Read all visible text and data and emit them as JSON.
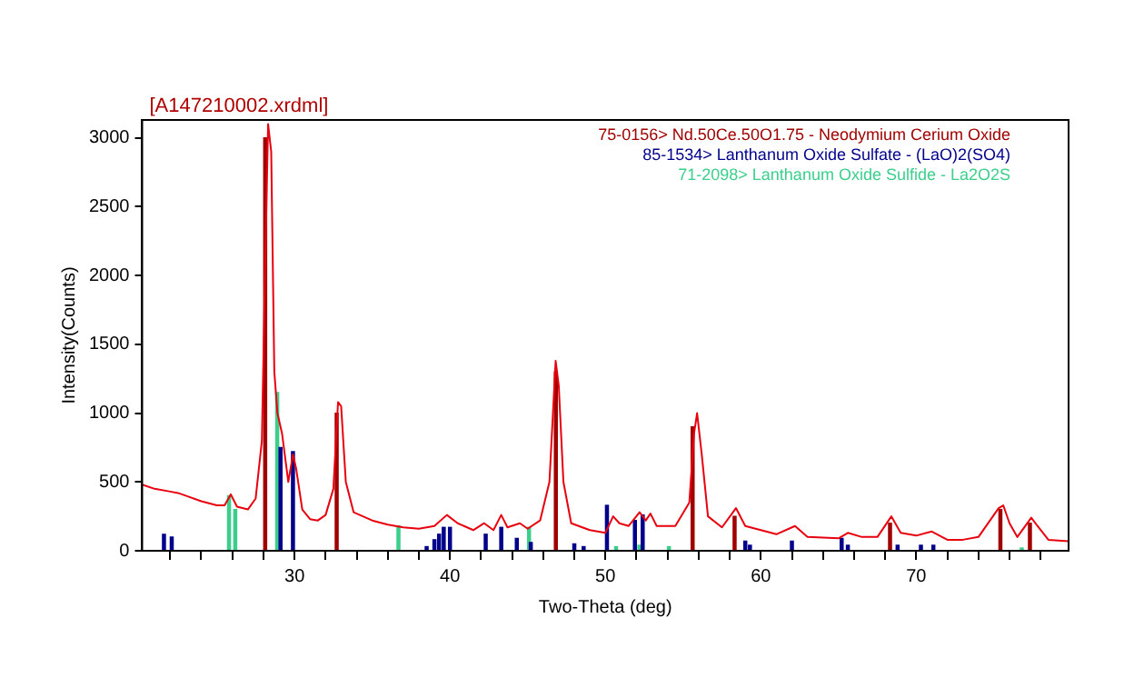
{
  "chart_data": {
    "type": "line",
    "title": "[A147210002.xrdml]",
    "xlabel": "Two-Theta (deg)",
    "ylabel": "Intensity(Counts)",
    "xlim": [
      20.2,
      79.8
    ],
    "ylim": [
      0,
      3130
    ],
    "xticks": [
      {
        "value": 22,
        "label": null
      },
      {
        "value": 24,
        "label": null
      },
      {
        "value": 26,
        "label": null
      },
      {
        "value": 28,
        "label": null
      },
      30,
      {
        "value": 32,
        "label": null
      },
      {
        "value": 34,
        "label": null
      },
      {
        "value": 36,
        "label": null
      },
      {
        "value": 38,
        "label": null
      },
      40,
      {
        "value": 42,
        "label": null
      },
      {
        "value": 44,
        "label": null
      },
      {
        "value": 46,
        "label": null
      },
      {
        "value": 48,
        "label": null
      },
      50,
      {
        "value": 52,
        "label": null
      },
      {
        "value": 54,
        "label": null
      },
      {
        "value": 56,
        "label": null
      },
      {
        "value": 58,
        "label": null
      },
      60,
      {
        "value": 62,
        "label": null
      },
      {
        "value": 64,
        "label": null
      },
      {
        "value": 66,
        "label": null
      },
      {
        "value": 68,
        "label": null
      },
      70,
      {
        "value": 72,
        "label": null
      },
      {
        "value": 74,
        "label": null
      },
      {
        "value": 76,
        "label": null
      },
      {
        "value": 78,
        "label": null
      }
    ],
    "yticks": [
      0,
      500,
      1000,
      1500,
      2000,
      2500,
      3000
    ],
    "grid": false,
    "legend": "top right",
    "marker": "none",
    "series": [
      {
        "color": "#e8000e",
        "x": [
          20.2,
          21,
          22,
          22.5,
          23,
          24,
          25,
          25.5,
          25.9,
          26.3,
          27,
          27.5,
          27.9,
          28.1,
          28.3,
          28.5,
          28.7,
          28.9,
          29.2,
          29.6,
          29.9,
          30.1,
          30.5,
          31,
          31.5,
          32,
          32.5,
          32.8,
          33.0,
          33.3,
          33.8,
          35,
          36,
          37,
          38,
          39,
          39.8,
          40.5,
          41.5,
          42.2,
          42.8,
          43.3,
          43.7,
          44.5,
          45,
          45.8,
          46.4,
          46.8,
          47.0,
          47.3,
          47.8,
          49,
          50,
          50.5,
          50.9,
          51.5,
          52.2,
          52.6,
          52.9,
          53.3,
          54.5,
          55.4,
          55.7,
          55.9,
          56.2,
          56.6,
          57.5,
          58.4,
          59,
          60,
          61,
          62.2,
          63,
          65,
          65.6,
          66.5,
          67.5,
          68.4,
          69,
          70,
          71,
          72,
          73,
          74,
          75.3,
          75.6,
          76,
          76.5,
          77.4,
          77.8,
          78.5,
          79.8
        ],
        "values": [
          480,
          450,
          430,
          420,
          400,
          360,
          330,
          330,
          410,
          320,
          300,
          380,
          800,
          2000,
          3100,
          2900,
          1300,
          1000,
          850,
          500,
          700,
          600,
          300,
          230,
          220,
          260,
          450,
          1080,
          1050,
          500,
          280,
          220,
          190,
          170,
          160,
          180,
          260,
          200,
          150,
          200,
          150,
          260,
          170,
          200,
          160,
          220,
          500,
          1380,
          1200,
          500,
          200,
          150,
          130,
          250,
          200,
          180,
          280,
          220,
          270,
          180,
          180,
          350,
          850,
          1000,
          700,
          250,
          170,
          310,
          180,
          150,
          120,
          180,
          100,
          90,
          130,
          100,
          100,
          250,
          130,
          110,
          140,
          80,
          80,
          100,
          310,
          330,
          200,
          100,
          240,
          180,
          80,
          70
        ]
      },
      {
        "type": "bar",
        "name": "75-0156> Nd.50Ce.50O1.75 - Neodymium Cerium Oxide",
        "color": "#a00000",
        "x": [
          28.3,
          32.9,
          47.0,
          55.8,
          58.5,
          68.5,
          75.6,
          77.5
        ],
        "values": [
          3000,
          1000,
          1300,
          900,
          250,
          200,
          300,
          200
        ]
      },
      {
        "type": "bar",
        "name": "85-1534> Lanthanum Oxide Sulfate - (LaO)2(SO4)",
        "color": "#00008b",
        "x": [
          21.6,
          22.1,
          29.1,
          29.9,
          38.5,
          39.0,
          39.3,
          39.6,
          40.0,
          42.3,
          43.3,
          44.3,
          45.2,
          48.0,
          48.6,
          50.1,
          51.9,
          52.4,
          59.0,
          59.3,
          62.0,
          65.2,
          65.6,
          68.8,
          70.3,
          71.1
        ],
        "values": [
          120,
          100,
          750,
          720,
          30,
          80,
          120,
          170,
          170,
          120,
          170,
          90,
          60,
          50,
          30,
          330,
          220,
          260,
          70,
          40,
          70,
          90,
          40,
          40,
          40,
          40
        ]
      },
      {
        "type": "bar",
        "name": "71-2098> Lanthanum Oxide Sulfide - La2O2S",
        "color": "#3ccf8c",
        "x": [
          25.6,
          26.0,
          28.7,
          36.5,
          44.9,
          50.5,
          52.0,
          53.9,
          61.9,
          76.6
        ],
        "values": [
          400,
          300,
          1150,
          180,
          170,
          30,
          40,
          30,
          null,
          20
        ]
      }
    ]
  }
}
